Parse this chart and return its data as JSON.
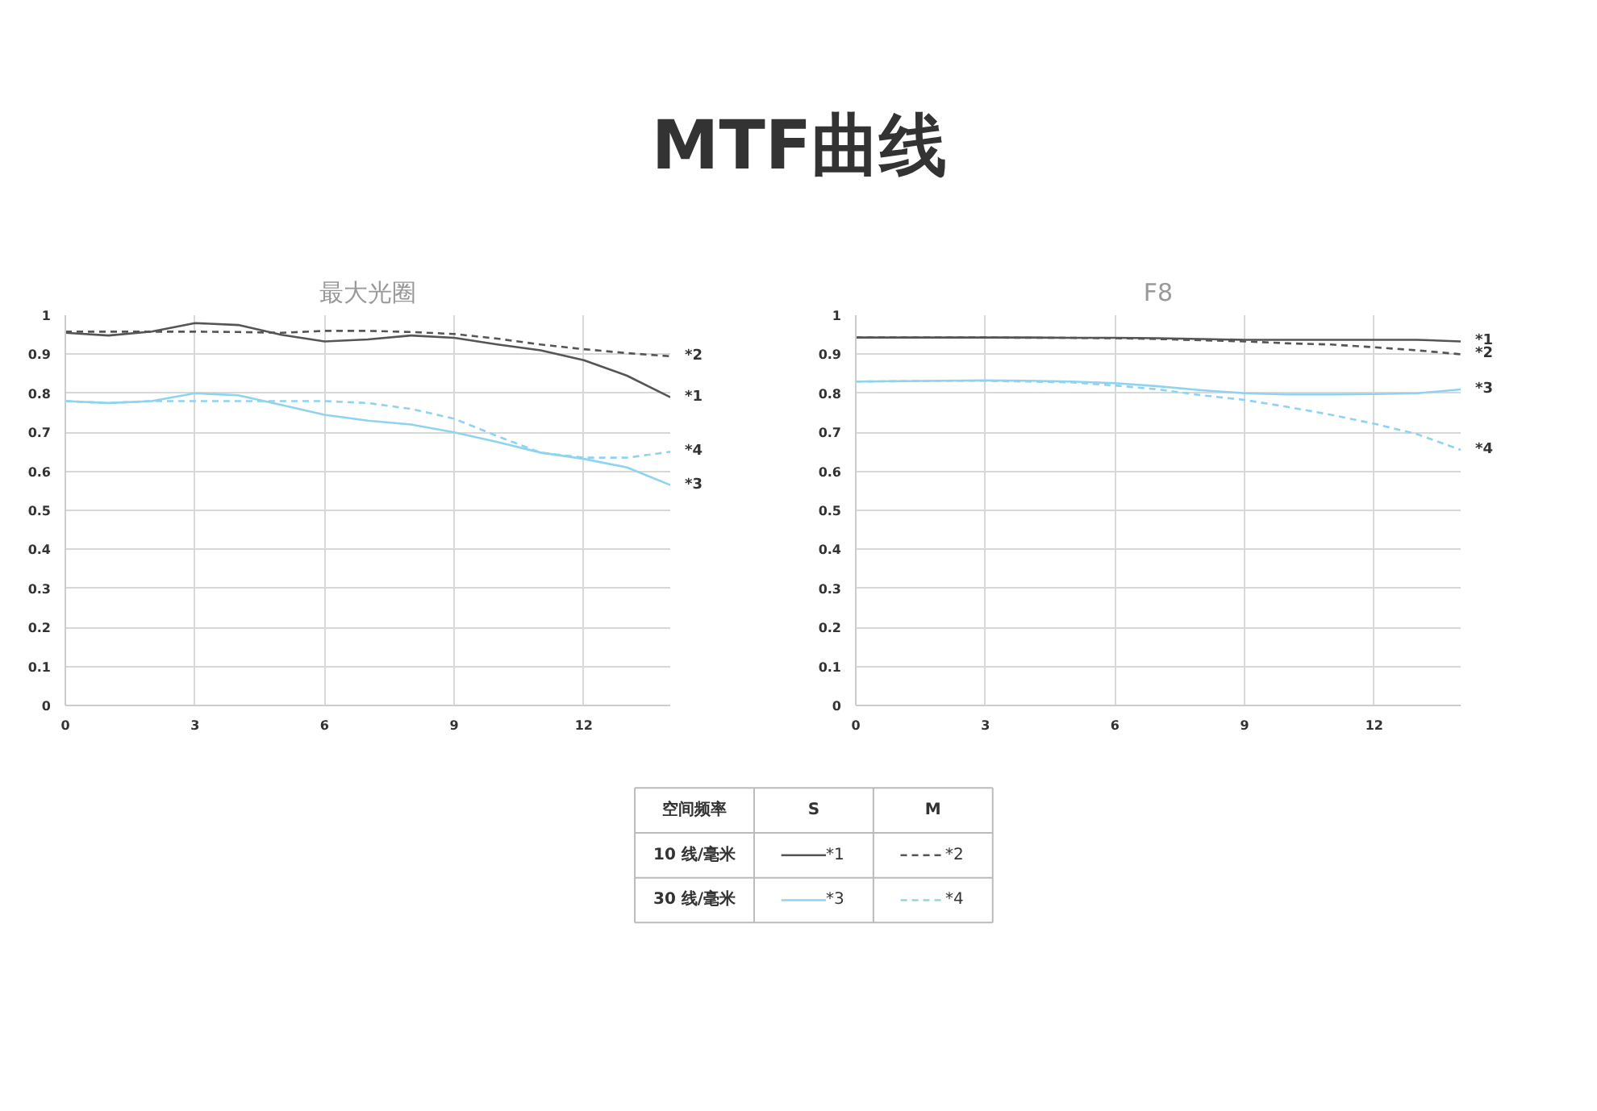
{
  "chart_data": [
    {
      "type": "line",
      "title": "MTF曲线",
      "subtitle": "最大光圈",
      "xlim": [
        0,
        14
      ],
      "xticks": [
        0,
        3,
        6,
        9,
        12
      ],
      "ylim": [
        0,
        1
      ],
      "yticks": [
        0,
        0.1,
        0.2,
        0.3,
        0.4,
        0.5,
        0.6,
        0.7,
        0.8,
        0.9,
        1
      ],
      "grid": true,
      "legend": "bottom",
      "x": [
        0,
        1,
        2,
        3,
        4,
        5,
        6,
        7,
        8,
        9,
        10,
        11,
        12,
        13,
        14
      ],
      "series": [
        {
          "name": "*1",
          "color": "#555555",
          "line_style": "solid",
          "values": [
            0.955,
            0.948,
            0.958,
            0.98,
            0.975,
            0.95,
            0.933,
            0.938,
            0.948,
            0.942,
            0.925,
            0.91,
            0.885,
            0.845,
            0.79
          ]
        },
        {
          "name": "*2",
          "color": "#555555",
          "line_style": "dashed",
          "values": [
            0.958,
            0.958,
            0.958,
            0.958,
            0.957,
            0.955,
            0.96,
            0.96,
            0.957,
            0.952,
            0.94,
            0.925,
            0.913,
            0.903,
            0.895
          ]
        },
        {
          "name": "*3",
          "color": "#8fd3f0",
          "line_style": "solid",
          "values": [
            0.78,
            0.775,
            0.78,
            0.8,
            0.795,
            0.77,
            0.745,
            0.73,
            0.72,
            0.7,
            0.675,
            0.648,
            0.632,
            0.61,
            0.565
          ]
        },
        {
          "name": "*4",
          "color": "#8fd3f0",
          "line_style": "dashed",
          "values": [
            0.78,
            0.775,
            0.78,
            0.78,
            0.78,
            0.78,
            0.78,
            0.775,
            0.76,
            0.735,
            0.69,
            0.648,
            0.635,
            0.635,
            0.65
          ]
        }
      ]
    },
    {
      "type": "line",
      "subtitle": "F8",
      "xlim": [
        0,
        14
      ],
      "xticks": [
        0,
        3,
        6,
        9,
        12
      ],
      "ylim": [
        0,
        1
      ],
      "yticks": [
        0,
        0.1,
        0.2,
        0.3,
        0.4,
        0.5,
        0.6,
        0.7,
        0.8,
        0.9,
        1
      ],
      "grid": true,
      "x": [
        0,
        1,
        2,
        3,
        4,
        5,
        6,
        7,
        8,
        9,
        10,
        11,
        12,
        13,
        14
      ],
      "series": [
        {
          "name": "*1",
          "color": "#555555",
          "line_style": "solid",
          "values": [
            0.943,
            0.943,
            0.943,
            0.943,
            0.943,
            0.942,
            0.942,
            0.941,
            0.939,
            0.937,
            0.937,
            0.937,
            0.937,
            0.937,
            0.933
          ]
        },
        {
          "name": "*2",
          "color": "#555555",
          "line_style": "dashed",
          "values": [
            0.943,
            0.943,
            0.943,
            0.943,
            0.942,
            0.942,
            0.941,
            0.939,
            0.936,
            0.933,
            0.928,
            0.925,
            0.918,
            0.91,
            0.9
          ]
        },
        {
          "name": "*3",
          "color": "#8fd3f0",
          "line_style": "solid",
          "values": [
            0.83,
            0.831,
            0.832,
            0.833,
            0.832,
            0.83,
            0.826,
            0.818,
            0.808,
            0.8,
            0.797,
            0.797,
            0.798,
            0.8,
            0.81
          ]
        },
        {
          "name": "*4",
          "color": "#8fd3f0",
          "line_style": "dashed",
          "values": [
            0.83,
            0.831,
            0.832,
            0.832,
            0.83,
            0.828,
            0.82,
            0.81,
            0.795,
            0.783,
            0.765,
            0.745,
            0.722,
            0.695,
            0.655
          ]
        }
      ]
    },
    {
      "type": "other",
      "annotations": [
        "空间频率",
        "S",
        "M",
        "10 线/毫米",
        "30 线/毫米"
      ]
    }
  ]
}
